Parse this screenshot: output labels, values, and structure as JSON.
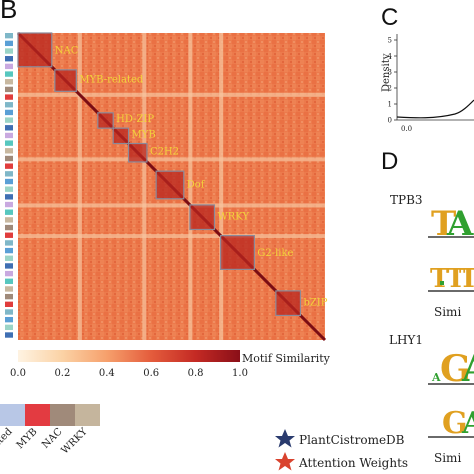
{
  "panels": {
    "b": "B",
    "c": "C",
    "d": "D"
  },
  "heatmap": {
    "families": [
      {
        "name": "NAC",
        "start": 0.0,
        "end": 0.11
      },
      {
        "name": "MYB-related",
        "start": 0.12,
        "end": 0.19
      },
      {
        "name": "HD-ZIP",
        "start": 0.26,
        "end": 0.31
      },
      {
        "name": "MYB",
        "start": 0.31,
        "end": 0.36
      },
      {
        "name": "C2H2",
        "start": 0.36,
        "end": 0.42
      },
      {
        "name": "Dof",
        "start": 0.45,
        "end": 0.54
      },
      {
        "name": "WRKY",
        "start": 0.56,
        "end": 0.64
      },
      {
        "name": "G2-like",
        "start": 0.66,
        "end": 0.77
      },
      {
        "name": "bZIP",
        "start": 0.84,
        "end": 0.92
      }
    ],
    "colorbar": {
      "title": "Motif Similarity",
      "ticks": [
        "0.0",
        "0.2",
        "0.4",
        "0.6",
        "0.8",
        "1.0"
      ],
      "colors": [
        "#fef3e2",
        "#fbd2a5",
        "#f6a06c",
        "#e45c3c",
        "#c42a24",
        "#8a0f18"
      ]
    },
    "sidebar_colors": [
      "#7fb7c8",
      "#57c7bf",
      "#c9a9e0",
      "#3f6fb3",
      "#e03c3c",
      "#a08a7a",
      "#c8b8a0",
      "#9ad4c7",
      "#5a9fd6"
    ]
  },
  "bottom_legend": {
    "categories": [
      {
        "label": "related",
        "color": "#b8c7e6"
      },
      {
        "label": "MYB",
        "color": "#e33b41"
      },
      {
        "label": "NAC",
        "color": "#a08a7a"
      },
      {
        "label": "WRKY",
        "color": "#c5b59d"
      }
    ]
  },
  "chart_data": [
    {
      "type": "heatmap",
      "title": "",
      "colorbar_label": "Motif Similarity",
      "value_range": [
        0.0,
        1.0
      ],
      "clusters": [
        "NAC",
        "MYB-related",
        "HD-ZIP",
        "MYB",
        "C2H2",
        "Dof",
        "WRKY",
        "G2-like",
        "bZIP"
      ]
    },
    {
      "type": "line",
      "ylabel": "Density",
      "yticks": [
        "0",
        "1",
        "2",
        "3",
        "4",
        "5"
      ],
      "xticks": [
        "0.0"
      ],
      "ylim": [
        0,
        5
      ]
    }
  ],
  "panel_d": {
    "motifs": [
      {
        "name": "TPB3"
      },
      {
        "name": ""
      },
      {
        "name": "LHY1"
      },
      {
        "name": ""
      }
    ],
    "similarity_label": "Simi",
    "legend": [
      {
        "label": "PlantCistromeDB",
        "color": "#2a3b6e"
      },
      {
        "label": "Attention Weights",
        "color": "#d9432e"
      }
    ]
  }
}
